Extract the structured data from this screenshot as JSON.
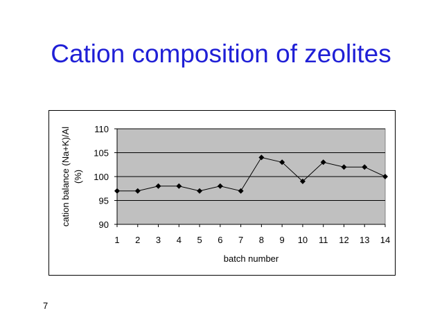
{
  "slide": {
    "title": "Cation composition of zeolites",
    "page_number": "7"
  },
  "chart_data": {
    "type": "line",
    "title": "",
    "xlabel": "batch number",
    "ylabel": "cation balance (Na+K)/Al (%)",
    "categories": [
      "1",
      "2",
      "3",
      "4",
      "5",
      "6",
      "7",
      "8",
      "9",
      "10",
      "11",
      "12",
      "13",
      "14"
    ],
    "series": [
      {
        "values": [
          97,
          97,
          98,
          98,
          97,
          98,
          97,
          104,
          103,
          99,
          103,
          102,
          102,
          100
        ]
      }
    ],
    "ylim": [
      90,
      110
    ],
    "yticks": [
      90,
      95,
      100,
      105,
      110
    ],
    "grid": true,
    "legend": "none",
    "colors": {
      "plot_bg": "#c0c0c0",
      "line": "#000000",
      "marker": "#000000",
      "title": "#1f1fd6"
    }
  }
}
